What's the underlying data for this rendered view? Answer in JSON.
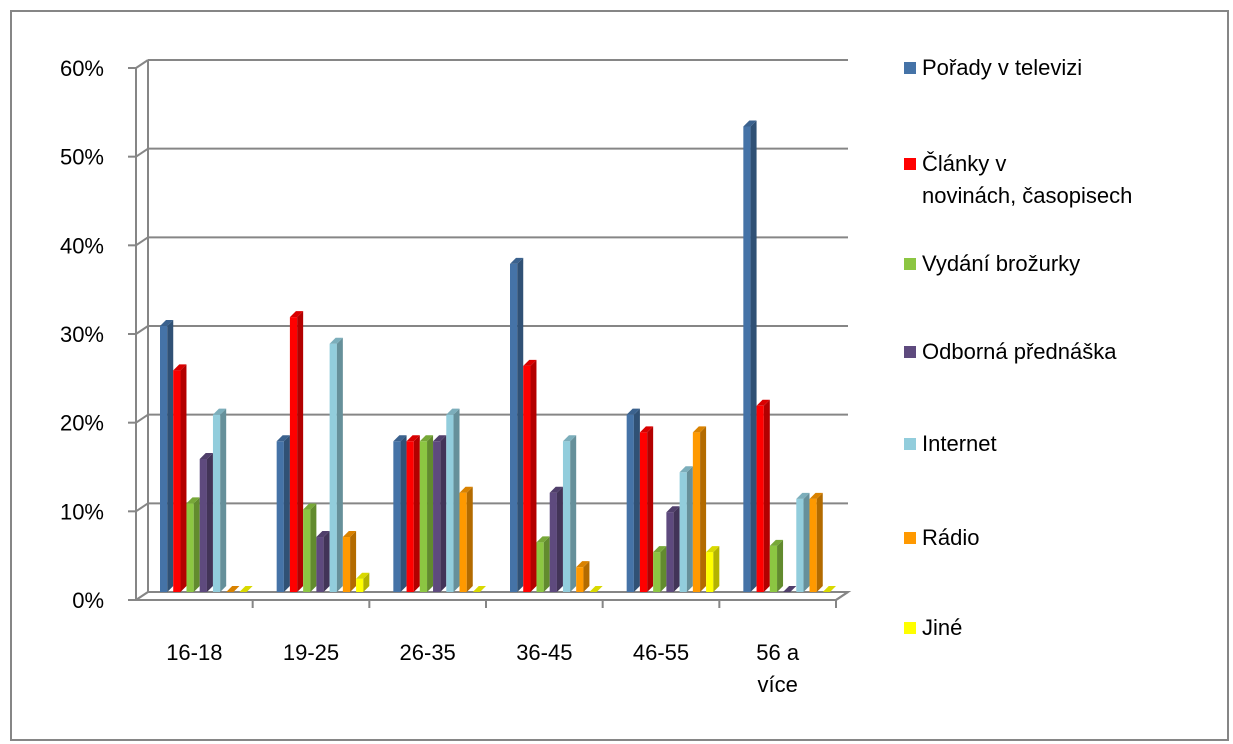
{
  "chart_data": {
    "type": "bar",
    "title": "",
    "xlabel": "",
    "ylabel": "",
    "ylim": [
      0,
      60
    ],
    "y_ticks": [
      "0%",
      "10%",
      "20%",
      "30%",
      "40%",
      "50%",
      "60%"
    ],
    "grid": true,
    "legend_position": "right",
    "categories": [
      "16-18",
      "19-25",
      "26-35",
      "36-45",
      "46-55",
      "56 a více"
    ],
    "category_lines": [
      [
        "16-18"
      ],
      [
        "19-25"
      ],
      [
        "26-35"
      ],
      [
        "36-45"
      ],
      [
        "46-55"
      ],
      [
        "56 a",
        "více"
      ]
    ],
    "series": [
      {
        "name": "Pořady v televizi",
        "legend_lines": [
          "Pořady v televizi"
        ],
        "color": "#4573A7",
        "values": [
          30,
          17,
          17,
          37,
          20,
          52.5
        ]
      },
      {
        "name": "Články v novinách, časopisech",
        "legend_lines": [
          "Články v",
          "novinách, časopisech"
        ],
        "color": "#FF0000",
        "values": [
          25,
          31,
          17,
          25.5,
          18,
          21
        ]
      },
      {
        "name": "Vydání brožurky",
        "legend_lines": [
          "Vydání brožurky"
        ],
        "color": "#8CC642",
        "values": [
          10,
          9.3,
          17,
          5.6,
          4.5,
          5.2
        ]
      },
      {
        "name": "Odborná přednáška",
        "legend_lines": [
          "Odborná přednáška"
        ],
        "color": "#5E4A7E",
        "values": [
          15,
          6.2,
          17,
          11.2,
          9,
          0
        ]
      },
      {
        "name": "Internet",
        "legend_lines": [
          "Internet"
        ],
        "color": "#92CDDC",
        "values": [
          20,
          28,
          20,
          17,
          13.5,
          10.5
        ]
      },
      {
        "name": "Rádio",
        "legend_lines": [
          "Rádio"
        ],
        "color": "#FF9900",
        "values": [
          0,
          6.2,
          11.2,
          2.8,
          18,
          10.5
        ]
      },
      {
        "name": "Jiné",
        "legend_lines": [
          "Jiné"
        ],
        "color": "#FFFF00",
        "values": [
          0,
          1.5,
          0,
          0,
          4.5,
          0
        ]
      }
    ]
  }
}
